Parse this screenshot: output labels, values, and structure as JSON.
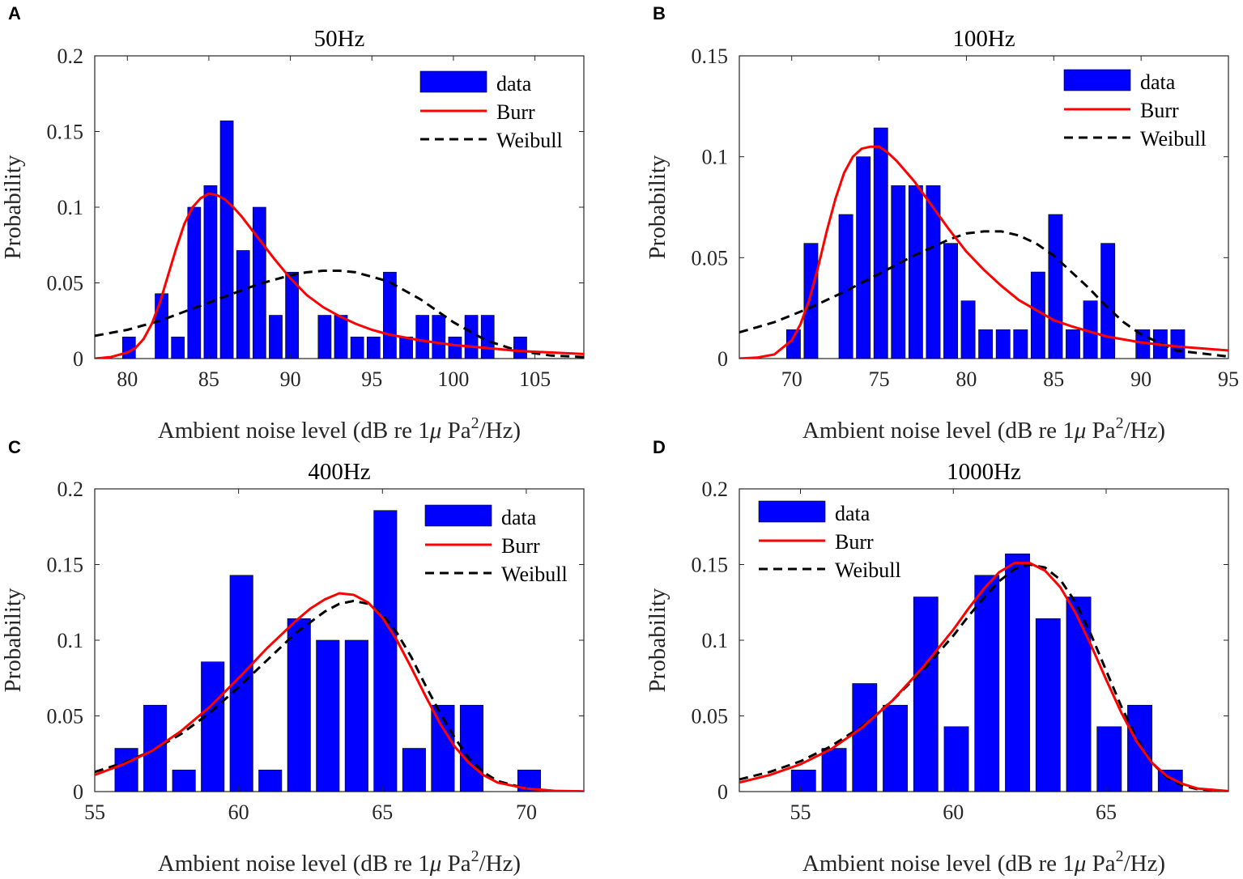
{
  "colors": {
    "bar_fill": "#0000ff",
    "bar_edge": "#000000",
    "burr": "#ff0000",
    "weibull": "#000000",
    "axis_text": "#262626",
    "background": "#ffffff"
  },
  "figure": {
    "xlabel_main": "Ambient noise level (dB re 1",
    "xlabel_mu": "μ",
    "xlabel_pa": " Pa",
    "xlabel_sup": "2",
    "xlabel_end": "/Hz)",
    "ylabel": "Probability"
  },
  "chart_data": [
    {
      "panel": "A",
      "type": "bar",
      "title": "50Hz",
      "xlabel": "Ambient noise level (dB re 1μ Pa²/Hz)",
      "ylabel": "Probability",
      "xlim": [
        78,
        108
      ],
      "ylim": [
        0,
        0.2
      ],
      "xticks": [
        80,
        85,
        90,
        95,
        100,
        105
      ],
      "xtick_labels": [
        "80",
        "85",
        "90",
        "95",
        "100",
        "105"
      ],
      "yticks": [
        0,
        0.05,
        0.1,
        0.15,
        0.2
      ],
      "ytick_labels": [
        "0",
        "0.05",
        "0.1",
        "0.15",
        "0.2"
      ],
      "legend_labels": [
        "data",
        "Burr",
        "Weibull"
      ],
      "legend_position": "top-right",
      "bar_width": 0.8,
      "bars": [
        {
          "x": 80.1,
          "y": 0.0143
        },
        {
          "x": 82.1,
          "y": 0.0429
        },
        {
          "x": 83.1,
          "y": 0.0143
        },
        {
          "x": 84.1,
          "y": 0.1
        },
        {
          "x": 85.1,
          "y": 0.1143
        },
        {
          "x": 86.1,
          "y": 0.1571
        },
        {
          "x": 87.1,
          "y": 0.0714
        },
        {
          "x": 88.1,
          "y": 0.1
        },
        {
          "x": 89.1,
          "y": 0.0286
        },
        {
          "x": 90.1,
          "y": 0.0571
        },
        {
          "x": 92.1,
          "y": 0.0286
        },
        {
          "x": 93.1,
          "y": 0.0286
        },
        {
          "x": 94.1,
          "y": 0.0143
        },
        {
          "x": 95.1,
          "y": 0.0143
        },
        {
          "x": 96.1,
          "y": 0.0571
        },
        {
          "x": 97.1,
          "y": 0.0143
        },
        {
          "x": 98.1,
          "y": 0.0286
        },
        {
          "x": 99.1,
          "y": 0.0286
        },
        {
          "x": 100.1,
          "y": 0.0143
        },
        {
          "x": 101.1,
          "y": 0.0286
        },
        {
          "x": 102.1,
          "y": 0.0286
        },
        {
          "x": 104.1,
          "y": 0.0143
        }
      ],
      "burr_curve": {
        "x": [
          78,
          79,
          80,
          80.5,
          81,
          81.5,
          82,
          82.5,
          83,
          83.5,
          84,
          84.5,
          85,
          85.5,
          86,
          86.5,
          87,
          88,
          89,
          90,
          91,
          92,
          93,
          94,
          95,
          96,
          98,
          100,
          102,
          104,
          106,
          108
        ],
        "y": [
          0.0,
          0.001,
          0.004,
          0.007,
          0.013,
          0.023,
          0.037,
          0.055,
          0.073,
          0.089,
          0.1,
          0.106,
          0.109,
          0.108,
          0.105,
          0.1,
          0.094,
          0.08,
          0.066,
          0.053,
          0.042,
          0.034,
          0.028,
          0.023,
          0.019,
          0.016,
          0.012,
          0.009,
          0.007,
          0.005,
          0.004,
          0.003
        ]
      },
      "weibull_curve": {
        "x": [
          78,
          80,
          82,
          84,
          86,
          88,
          90,
          91,
          92,
          93,
          94,
          96,
          98,
          100,
          102,
          104,
          106,
          108
        ],
        "y": [
          0.015,
          0.019,
          0.025,
          0.033,
          0.041,
          0.049,
          0.055,
          0.057,
          0.058,
          0.058,
          0.057,
          0.051,
          0.039,
          0.024,
          0.012,
          0.005,
          0.002,
          0.001
        ]
      }
    },
    {
      "panel": "B",
      "type": "bar",
      "title": "100Hz",
      "xlabel": "Ambient noise level (dB re 1μ Pa²/Hz)",
      "ylabel": "Probability",
      "xlim": [
        67,
        95
      ],
      "ylim": [
        0,
        0.15
      ],
      "xticks": [
        70,
        75,
        80,
        85,
        90,
        95
      ],
      "xtick_labels": [
        "70",
        "75",
        "80",
        "85",
        "90",
        "95"
      ],
      "yticks": [
        0,
        0.05,
        0.1,
        0.15
      ],
      "ytick_labels": [
        "0",
        "0.05",
        "0.1",
        "0.15"
      ],
      "legend_labels": [
        "data",
        "Burr",
        "Weibull"
      ],
      "legend_position": "top-right",
      "bar_width": 0.8,
      "bars": [
        {
          "x": 70.1,
          "y": 0.0143
        },
        {
          "x": 71.1,
          "y": 0.0571
        },
        {
          "x": 73.1,
          "y": 0.0714
        },
        {
          "x": 74.1,
          "y": 0.1
        },
        {
          "x": 75.1,
          "y": 0.1143
        },
        {
          "x": 76.1,
          "y": 0.0857
        },
        {
          "x": 77.1,
          "y": 0.0857
        },
        {
          "x": 78.1,
          "y": 0.0857
        },
        {
          "x": 79.1,
          "y": 0.0571
        },
        {
          "x": 80.1,
          "y": 0.0286
        },
        {
          "x": 81.1,
          "y": 0.0143
        },
        {
          "x": 82.1,
          "y": 0.0143
        },
        {
          "x": 83.1,
          "y": 0.0143
        },
        {
          "x": 84.1,
          "y": 0.0429
        },
        {
          "x": 85.1,
          "y": 0.0714
        },
        {
          "x": 86.1,
          "y": 0.0143
        },
        {
          "x": 87.1,
          "y": 0.0286
        },
        {
          "x": 88.1,
          "y": 0.0571
        },
        {
          "x": 90.1,
          "y": 0.0143
        },
        {
          "x": 91.1,
          "y": 0.0143
        },
        {
          "x": 92.1,
          "y": 0.0143
        }
      ],
      "burr_curve": {
        "x": [
          67,
          68,
          69,
          70,
          70.5,
          71,
          71.5,
          72,
          72.5,
          73,
          73.5,
          74,
          74.5,
          75,
          75.5,
          76,
          77,
          78,
          79,
          80,
          81,
          82,
          83,
          84,
          85,
          86,
          88,
          90,
          92,
          95
        ],
        "y": [
          0.0,
          0.0005,
          0.002,
          0.009,
          0.017,
          0.029,
          0.045,
          0.063,
          0.079,
          0.092,
          0.1,
          0.104,
          0.105,
          0.105,
          0.102,
          0.098,
          0.088,
          0.076,
          0.064,
          0.053,
          0.044,
          0.036,
          0.029,
          0.024,
          0.019,
          0.016,
          0.011,
          0.008,
          0.006,
          0.004
        ]
      },
      "weibull_curve": {
        "x": [
          67,
          69,
          71,
          73,
          75,
          77,
          79,
          80,
          81,
          82,
          83,
          84,
          85,
          86,
          87,
          88,
          89,
          90,
          92,
          95
        ],
        "y": [
          0.013,
          0.018,
          0.025,
          0.033,
          0.042,
          0.051,
          0.059,
          0.062,
          0.063,
          0.063,
          0.061,
          0.057,
          0.051,
          0.043,
          0.035,
          0.026,
          0.018,
          0.012,
          0.004,
          0.001
        ]
      }
    },
    {
      "panel": "C",
      "type": "bar",
      "title": "400Hz",
      "xlabel": "Ambient noise level (dB re 1μ Pa²/Hz)",
      "ylabel": "Probability",
      "xlim": [
        55,
        72
      ],
      "ylim": [
        0,
        0.2
      ],
      "xticks": [
        55,
        60,
        65,
        70
      ],
      "xtick_labels": [
        "55",
        "60",
        "65",
        "70"
      ],
      "yticks": [
        0,
        0.05,
        0.1,
        0.15,
        0.2
      ],
      "ytick_labels": [
        "0",
        "0.05",
        "0.1",
        "0.15",
        "0.2"
      ],
      "legend_labels": [
        "data",
        "Burr",
        "Weibull"
      ],
      "legend_position": "top-right",
      "bar_width": 0.8,
      "bars": [
        {
          "x": 56.1,
          "y": 0.0286
        },
        {
          "x": 57.1,
          "y": 0.0571
        },
        {
          "x": 58.1,
          "y": 0.0143
        },
        {
          "x": 59.1,
          "y": 0.0857
        },
        {
          "x": 60.1,
          "y": 0.1429
        },
        {
          "x": 61.1,
          "y": 0.0143
        },
        {
          "x": 62.1,
          "y": 0.1143
        },
        {
          "x": 63.1,
          "y": 0.1
        },
        {
          "x": 64.1,
          "y": 0.1
        },
        {
          "x": 65.1,
          "y": 0.1857
        },
        {
          "x": 66.1,
          "y": 0.0286
        },
        {
          "x": 67.1,
          "y": 0.0571
        },
        {
          "x": 68.1,
          "y": 0.0571
        },
        {
          "x": 70.1,
          "y": 0.0143
        }
      ],
      "burr_curve": {
        "x": [
          55,
          56,
          57,
          58,
          59,
          60,
          61,
          62,
          62.5,
          63,
          63.5,
          64,
          64.5,
          65,
          65.5,
          66,
          66.5,
          67,
          67.5,
          68,
          68.5,
          69,
          70,
          71,
          72
        ],
        "y": [
          0.011,
          0.018,
          0.027,
          0.04,
          0.056,
          0.075,
          0.095,
          0.113,
          0.121,
          0.127,
          0.131,
          0.13,
          0.125,
          0.115,
          0.1,
          0.082,
          0.063,
          0.045,
          0.03,
          0.019,
          0.011,
          0.006,
          0.002,
          0.0005,
          0.0001
        ]
      },
      "weibull_curve": {
        "x": [
          55,
          56,
          57,
          58,
          59,
          60,
          61,
          62,
          63,
          63.5,
          64,
          64.5,
          65,
          65.5,
          66,
          66.5,
          67,
          67.5,
          68,
          68.5,
          69,
          70,
          71,
          72
        ],
        "y": [
          0.013,
          0.019,
          0.027,
          0.038,
          0.052,
          0.069,
          0.087,
          0.105,
          0.119,
          0.124,
          0.126,
          0.124,
          0.117,
          0.105,
          0.089,
          0.07,
          0.052,
          0.036,
          0.022,
          0.013,
          0.007,
          0.002,
          0.0004,
          0.0001
        ]
      }
    },
    {
      "panel": "D",
      "type": "bar",
      "title": "1000Hz",
      "xlabel": "Ambient noise level (dB re 1μ Pa²/Hz)",
      "ylabel": "Probability",
      "xlim": [
        53,
        69
      ],
      "ylim": [
        0,
        0.2
      ],
      "xticks": [
        55,
        60,
        65
      ],
      "xtick_labels": [
        "55",
        "60",
        "65"
      ],
      "yticks": [
        0,
        0.05,
        0.1,
        0.15,
        0.2
      ],
      "ytick_labels": [
        "0",
        "0.05",
        "0.1",
        "0.15",
        "0.2"
      ],
      "legend_labels": [
        "data",
        "Burr",
        "Weibull"
      ],
      "legend_position": "top-left",
      "bar_width": 0.8,
      "bars": [
        {
          "x": 55.1,
          "y": 0.0143
        },
        {
          "x": 56.1,
          "y": 0.0286
        },
        {
          "x": 57.1,
          "y": 0.0714
        },
        {
          "x": 58.1,
          "y": 0.0571
        },
        {
          "x": 59.1,
          "y": 0.1286
        },
        {
          "x": 60.1,
          "y": 0.0429
        },
        {
          "x": 61.1,
          "y": 0.1429
        },
        {
          "x": 62.1,
          "y": 0.1571
        },
        {
          "x": 63.1,
          "y": 0.1143
        },
        {
          "x": 64.1,
          "y": 0.1286
        },
        {
          "x": 65.1,
          "y": 0.0429
        },
        {
          "x": 66.1,
          "y": 0.0571
        },
        {
          "x": 67.1,
          "y": 0.0143
        }
      ],
      "burr_curve": {
        "x": [
          53,
          54,
          55,
          56,
          57,
          58,
          59,
          60,
          60.5,
          61,
          61.5,
          62,
          62.5,
          63,
          63.5,
          64,
          64.5,
          65,
          65.5,
          66,
          66.5,
          67,
          67.5,
          68,
          69
        ],
        "y": [
          0.006,
          0.011,
          0.018,
          0.028,
          0.042,
          0.06,
          0.082,
          0.107,
          0.121,
          0.134,
          0.145,
          0.151,
          0.151,
          0.146,
          0.135,
          0.118,
          0.097,
          0.074,
          0.052,
          0.033,
          0.019,
          0.01,
          0.005,
          0.002,
          0.0003
        ]
      },
      "weibull_curve": {
        "x": [
          53,
          54,
          55,
          56,
          57,
          58,
          59,
          60,
          60.5,
          61,
          61.5,
          62,
          62.5,
          63,
          63.5,
          64,
          64.5,
          65,
          65.5,
          66,
          66.5,
          67,
          67.5,
          68,
          69
        ],
        "y": [
          0.008,
          0.013,
          0.02,
          0.03,
          0.043,
          0.06,
          0.08,
          0.103,
          0.116,
          0.128,
          0.139,
          0.147,
          0.15,
          0.148,
          0.14,
          0.125,
          0.104,
          0.08,
          0.056,
          0.035,
          0.019,
          0.009,
          0.004,
          0.0015,
          0.0002
        ]
      }
    }
  ]
}
